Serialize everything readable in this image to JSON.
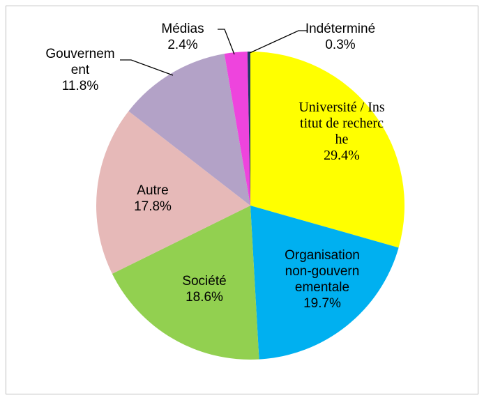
{
  "chart_data": {
    "type": "pie",
    "categories": [
      "Université / Institut de recherche",
      "Organisation non-gouvernementale",
      "Société",
      "Autre",
      "Gouvernement",
      "Médias",
      "Indéterminé"
    ],
    "values": [
      29.4,
      19.7,
      18.6,
      17.8,
      11.8,
      2.4,
      0.3
    ],
    "value_labels": [
      "29.4%",
      "19.7%",
      "18.6%",
      "17.8%",
      "11.8%",
      "2.4%",
      "0.3%"
    ],
    "colors": [
      "#ffff00",
      "#00b0f0",
      "#92d050",
      "#e6b9b8",
      "#b3a2c7",
      "#ee44dd",
      "#1f3864"
    ]
  }
}
